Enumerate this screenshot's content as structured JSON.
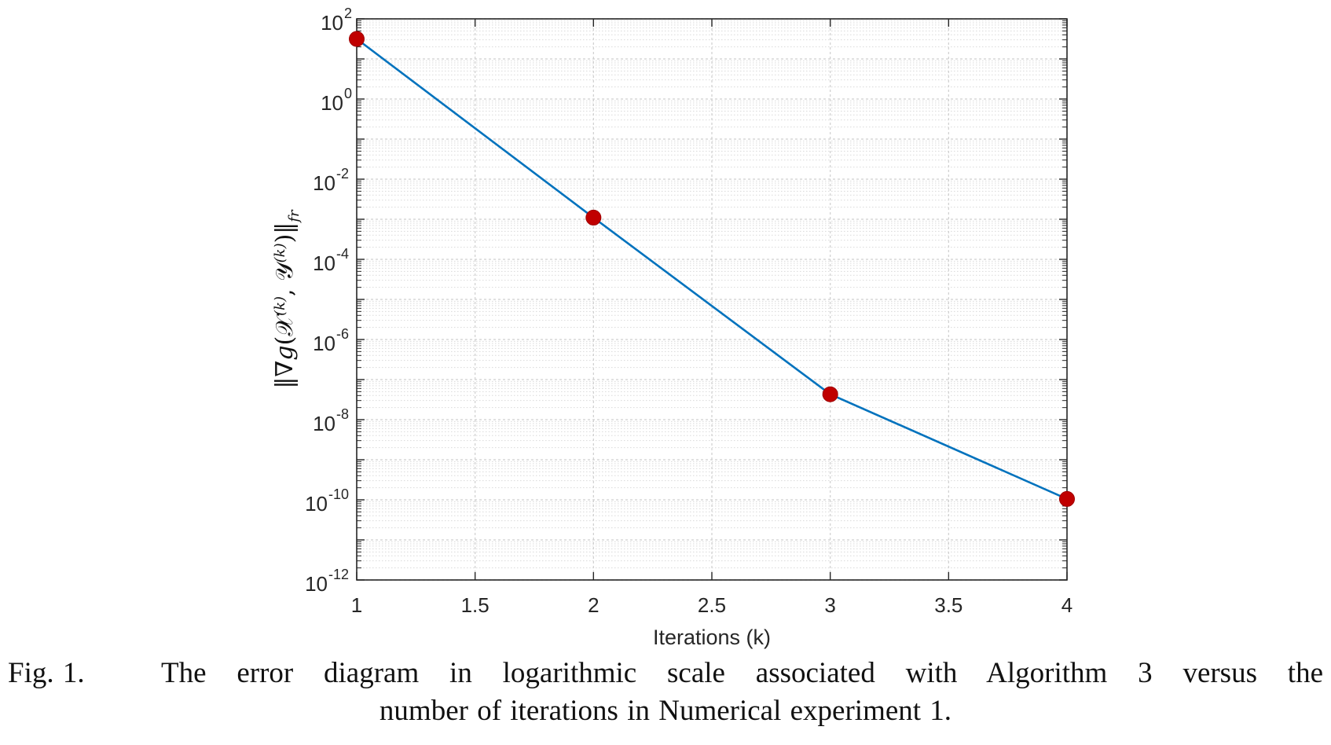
{
  "chart_data": {
    "type": "line",
    "title": "",
    "xlabel": "Iterations (k)",
    "ylabel": "‖∇g(𝒳^(k), 𝒴^(k))‖_fr",
    "y_scale": "log",
    "xlim": [
      1,
      4
    ],
    "ylim": [
      1e-12,
      100
    ],
    "x_ticks": [
      "1",
      "1.5",
      "2",
      "2.5",
      "3",
      "3.5",
      "4"
    ],
    "y_ticks": [
      {
        "base": "10",
        "exp": "2"
      },
      {
        "base": "10",
        "exp": "0"
      },
      {
        "base": "10",
        "exp": "-2"
      },
      {
        "base": "10",
        "exp": "-4"
      },
      {
        "base": "10",
        "exp": "-6"
      },
      {
        "base": "10",
        "exp": "-8"
      },
      {
        "base": "10",
        "exp": "-10"
      },
      {
        "base": "10",
        "exp": "-12"
      }
    ],
    "grid": true,
    "minor_grid": true,
    "series": [
      {
        "x": [
          1,
          2,
          3,
          4
        ],
        "y": [
          31.6,
          0.0011,
          4.3e-08,
          1.05e-10
        ],
        "line_color": "#0072bd",
        "marker_color": "#c00000"
      }
    ]
  },
  "caption": {
    "number": "Fig. 1.",
    "line1": "The error diagram in logarithmic scale associated with Algorithm 3 versus the",
    "line2": "number of iterations in Numerical experiment 1."
  }
}
